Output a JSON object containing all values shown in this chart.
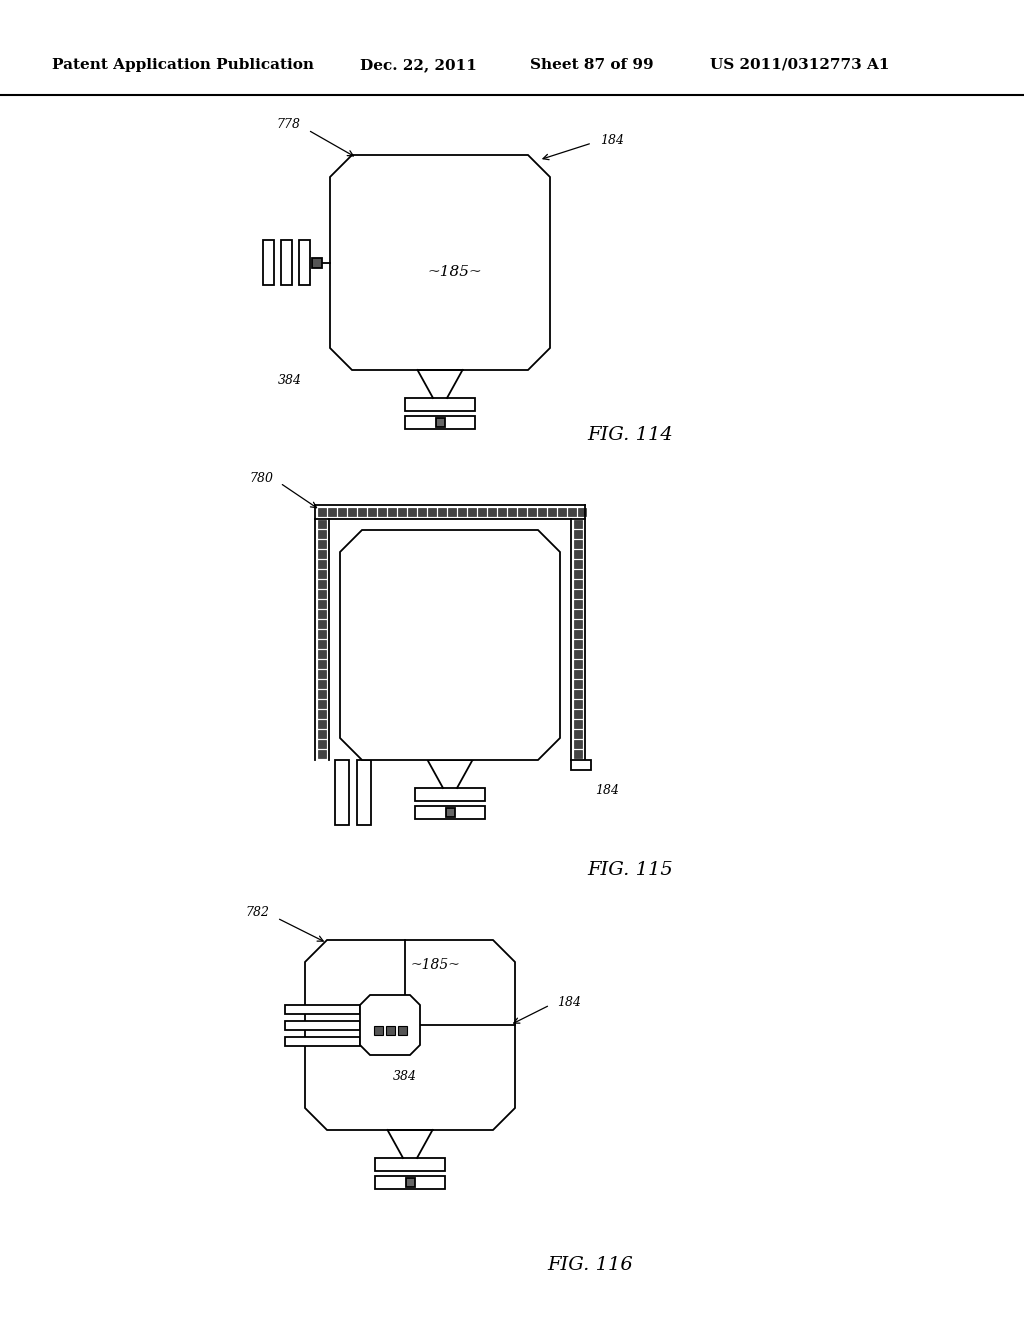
{
  "bg_color": "#ffffff",
  "header_text": "Patent Application Publication",
  "header_date": "Dec. 22, 2011",
  "header_sheet": "Sheet 87 of 99",
  "header_patent": "US 2011/0312773 A1",
  "fig114_label": "FIG. 114",
  "fig115_label": "FIG. 115",
  "fig116_label": "FIG. 116",
  "line_color": "#000000",
  "line_width": 1.3,
  "font_color": "#000000"
}
